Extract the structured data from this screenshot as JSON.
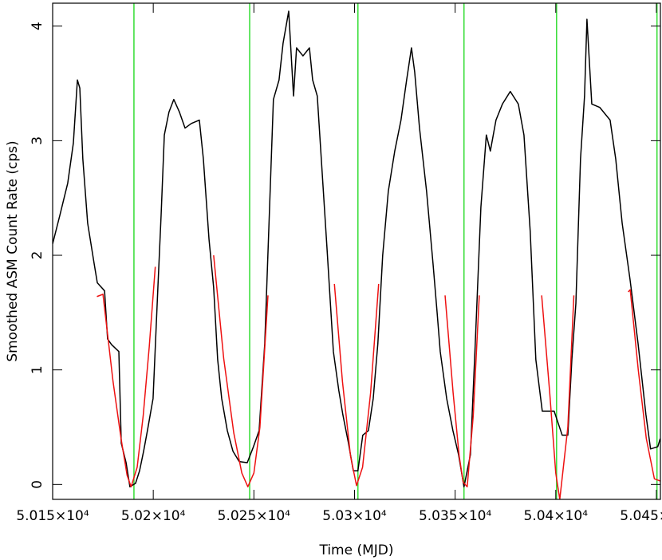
{
  "chart_data": {
    "type": "line",
    "xlabel": "Time (MJD)",
    "ylabel": "Smoothed ASM Count Rate (cps)",
    "xlim": [
      50150,
      50452
    ],
    "ylim": [
      -0.13,
      4.2
    ],
    "xticks": [
      {
        "value": 50150,
        "label": "5.015×10⁴"
      },
      {
        "value": 50200,
        "label": "5.02×10⁴"
      },
      {
        "value": 50250,
        "label": "5.025×10⁴"
      },
      {
        "value": 50300,
        "label": "5.03×10⁴"
      },
      {
        "value": 50350,
        "label": "5.035×10⁴"
      },
      {
        "value": 50400,
        "label": "5.04×10⁴"
      },
      {
        "value": 50450,
        "label": "5.045×10⁴"
      }
    ],
    "yticks": [
      0,
      1,
      2,
      3,
      4
    ],
    "vlines": {
      "color": "#33dd33",
      "values": [
        50190.4,
        50247.9,
        50301.7,
        50354.4,
        50400.4,
        50450.3
      ]
    },
    "series": [
      {
        "color": "#000000",
        "x": [
          50150,
          50153.6,
          50157.5,
          50160.3,
          50162.3,
          50163.5,
          50165,
          50167.4,
          50170.6,
          50172.2,
          50175.8,
          50177.3,
          50179.3,
          50182.9,
          50184.1,
          50186.5,
          50188.4,
          50191.2,
          50193.2,
          50195.2,
          50197.1,
          50199.9,
          50202.3,
          50203.9,
          50205.5,
          50207.8,
          50210.2,
          50213,
          50215.8,
          50218.9,
          50222.9,
          50224.9,
          50227.7,
          50230,
          50232,
          50234,
          50236.8,
          50239.6,
          50242.7,
          50246.7,
          50249.8,
          50252.6,
          50255.4,
          50257.8,
          50259.7,
          50262.5,
          50264.5,
          50267.3,
          50269.7,
          50271.2,
          50274.4,
          50277.6,
          50279.2,
          50281.5,
          50283.5,
          50286.3,
          50289.5,
          50292.2,
          50294.2,
          50297,
          50299.4,
          50301.7,
          50304.1,
          50306.9,
          50309.3,
          50311.6,
          50314,
          50316.8,
          50320,
          50323.1,
          50325.9,
          50328.3,
          50329.9,
          50332.3,
          50335.8,
          50339,
          50341,
          50342.6,
          50345.8,
          50348.9,
          50351.7,
          50354.4,
          50357.6,
          50360,
          50362.8,
          50365.5,
          50367.5,
          50370.3,
          50373.5,
          50377.4,
          50381.4,
          50384.2,
          50387.3,
          50390.1,
          50393.3,
          50399.2,
          50403.2,
          50406,
          50408,
          50410,
          50412.3,
          50414.3,
          50415.5,
          50417.9,
          50421.9,
          50427,
          50429.8,
          50433,
          50436.9,
          50440.9,
          50444.8,
          50447.1,
          50450.7,
          50451.9
        ],
        "values": [
          2.1,
          2.35,
          2.63,
          2.98,
          3.53,
          3.46,
          2.84,
          2.28,
          1.93,
          1.76,
          1.69,
          1.27,
          1.22,
          1.16,
          0.36,
          0.19,
          -0.02,
          0.01,
          0.12,
          0.29,
          0.47,
          0.75,
          1.72,
          2.35,
          3.05,
          3.25,
          3.36,
          3.25,
          3.11,
          3.15,
          3.18,
          2.84,
          2.14,
          1.72,
          1.09,
          0.75,
          0.47,
          0.29,
          0.2,
          0.19,
          0.33,
          0.47,
          1.23,
          2.42,
          3.36,
          3.53,
          3.85,
          4.13,
          3.39,
          3.81,
          3.74,
          3.81,
          3.53,
          3.39,
          2.84,
          2.07,
          1.16,
          0.82,
          0.61,
          0.36,
          0.12,
          0.12,
          0.43,
          0.47,
          0.75,
          1.23,
          2,
          2.56,
          2.91,
          3.18,
          3.53,
          3.81,
          3.6,
          3.11,
          2.56,
          1.93,
          1.51,
          1.16,
          0.75,
          0.47,
          0.26,
          -0.02,
          0.26,
          1.23,
          2.42,
          3.05,
          2.91,
          3.18,
          3.32,
          3.43,
          3.32,
          3.05,
          2.21,
          1.09,
          0.64,
          0.64,
          0.43,
          0.43,
          1.09,
          1.58,
          2.84,
          3.39,
          4.06,
          3.32,
          3.29,
          3.18,
          2.84,
          2.28,
          1.79,
          1.23,
          0.61,
          0.31,
          0.33,
          0.4
        ]
      },
      {
        "color": "#ee1111",
        "x": [
          50172,
          50175,
          50180,
          50184,
          50187,
          50189,
          50192,
          50195,
          50198,
          50201,
          null,
          50230,
          50235,
          50240,
          50244,
          50247,
          50250,
          50253,
          50257,
          null,
          50290,
          50294,
          50298,
          50301,
          50304,
          50308,
          50312,
          null,
          50345,
          50349,
          50352,
          50354,
          50356,
          50359,
          50362,
          null,
          50393,
          50397,
          50400,
          50402,
          50406,
          50409,
          null,
          50436,
          50437,
          50441,
          50445,
          50449,
          50452
        ],
        "values": [
          1.64,
          1.66,
          0.9,
          0.4,
          0.08,
          -0.02,
          0.15,
          0.6,
          1.2,
          1.9,
          null,
          2.0,
          1.1,
          0.45,
          0.1,
          -0.02,
          0.1,
          0.5,
          1.65,
          null,
          1.75,
          0.9,
          0.25,
          -0.01,
          0.15,
          0.8,
          1.75,
          null,
          1.65,
          0.8,
          0.25,
          0.02,
          -0.02,
          0.6,
          1.65,
          null,
          1.65,
          0.8,
          0.1,
          -0.13,
          0.5,
          1.65,
          null,
          1.68,
          1.7,
          1.0,
          0.4,
          0.05,
          0.03
        ]
      }
    ]
  }
}
